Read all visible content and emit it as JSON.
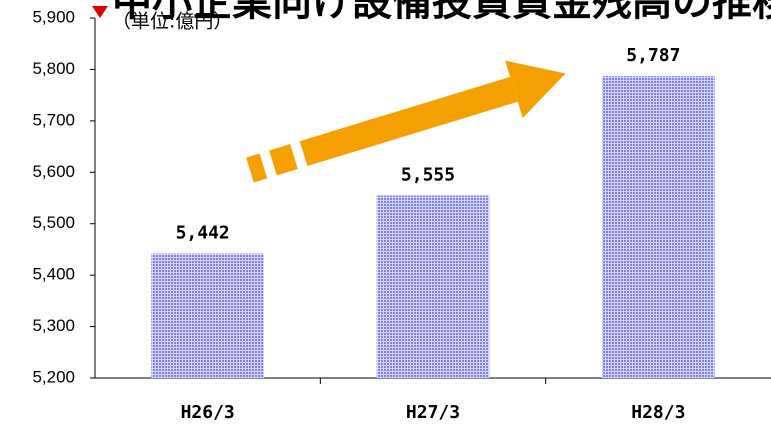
{
  "chart_data": {
    "type": "bar",
    "title": "中小企業向け設備投資資金残高の推移",
    "subtitle": "（単位:億円）",
    "categories": [
      "H26/3",
      "H27/3",
      "H28/3"
    ],
    "values": [
      5442,
      5555,
      5787
    ],
    "value_labels": [
      "5,442",
      "5,555",
      "5,787"
    ],
    "color": "#8f8fe8",
    "ylim": [
      5200,
      5900
    ],
    "yticks": [
      {
        "value": 5200,
        "label": "5,200"
      },
      {
        "value": 5300,
        "label": "5,300"
      },
      {
        "value": 5400,
        "label": "5,400"
      },
      {
        "value": 5500,
        "label": "5,500"
      },
      {
        "value": 5600,
        "label": "5,600"
      },
      {
        "value": 5700,
        "label": "5,700"
      },
      {
        "value": 5800,
        "label": "5,800"
      },
      {
        "value": 5900,
        "label": "5,900"
      }
    ],
    "grid": false
  }
}
